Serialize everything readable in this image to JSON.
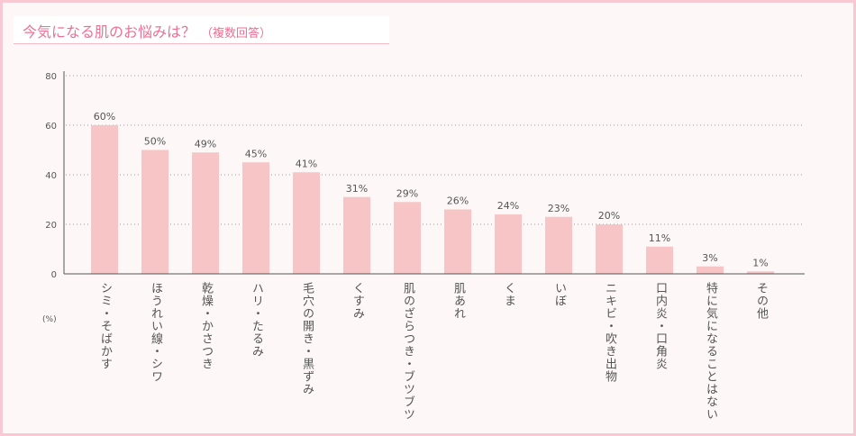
{
  "title": "今気になる肌のお悩みは？",
  "subtitle": "（複数回答）",
  "chart_data": {
    "type": "bar",
    "ylabel": "(%)",
    "ylim": [
      0,
      80
    ],
    "yticks": [
      0,
      20,
      40,
      60,
      80
    ],
    "grid": true,
    "categories": [
      "シミ・そばかす",
      "ほうれい線・シワ",
      "乾燥・かさつき",
      "ハリ・たるみ",
      "毛穴の開き・黒ずみ",
      "くすみ",
      "肌のざらつき・ブツブツ",
      "肌あれ",
      "くま",
      "いぼ",
      "ニキビ・吹き出物",
      "口内炎・口角炎",
      "特に気になることはない",
      "その他"
    ],
    "values": [
      60,
      50,
      49,
      45,
      41,
      31,
      29,
      26,
      24,
      23,
      20,
      11,
      3,
      1
    ],
    "data_labels": [
      "60%",
      "50%",
      "49%",
      "45%",
      "41%",
      "31%",
      "29%",
      "26%",
      "24%",
      "23%",
      "20%",
      "11%",
      "3%",
      "1%"
    ],
    "bar_color": "#f7c5c5"
  }
}
